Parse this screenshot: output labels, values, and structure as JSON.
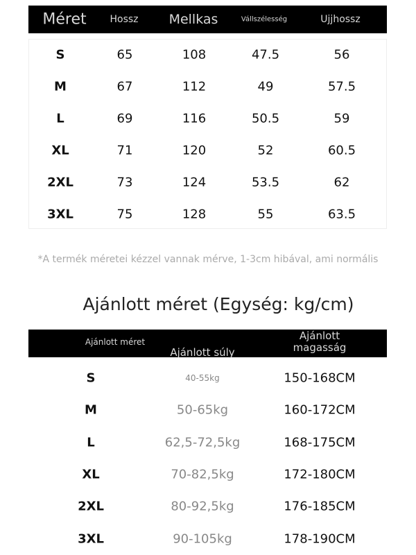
{
  "size_table": {
    "headers": [
      "Méret",
      "Hossz",
      "Mellkas",
      "Vállszélesség",
      "Ujjhossz"
    ],
    "rows": [
      [
        "S",
        "65",
        "108",
        "47.5",
        "56"
      ],
      [
        "M",
        "67",
        "112",
        "49",
        "57.5"
      ],
      [
        "L",
        "69",
        "116",
        "50.5",
        "59"
      ],
      [
        "XL",
        "71",
        "120",
        "52",
        "60.5"
      ],
      [
        "2XL",
        "73",
        "124",
        "53.5",
        "62"
      ],
      [
        "3XL",
        "75",
        "128",
        "55",
        "63.5"
      ]
    ]
  },
  "note": "*A termék méretei kézzel vannak mérve, 1-3cm hibával, ami normális",
  "recommend_title": "Ajánlott méret (Egység: kg/cm)",
  "recommend_table": {
    "headers": [
      "Ajánlott méret",
      "Ajánlott súly",
      "Ajánlott magasság"
    ],
    "rows": [
      [
        "S",
        "40-55kg",
        "150-168CM"
      ],
      [
        "M",
        "50-65kg",
        "160-172CM"
      ],
      [
        "L",
        "62,5-72,5kg",
        "168-175CM"
      ],
      [
        "XL",
        "70-82,5kg",
        "172-180CM"
      ],
      [
        "2XL",
        "80-92,5kg",
        "176-185CM"
      ],
      [
        "3XL",
        "90-105kg",
        "178-190CM"
      ]
    ]
  }
}
